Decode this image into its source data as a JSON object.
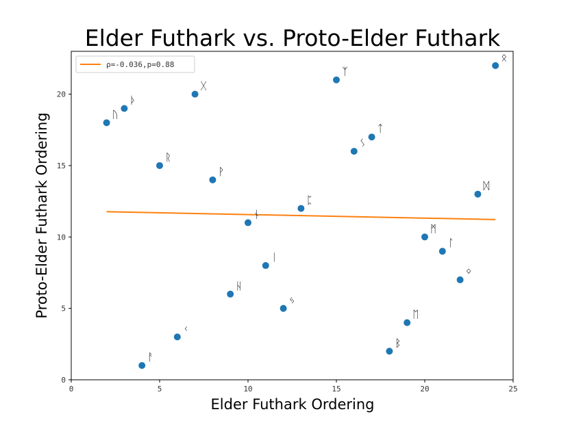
{
  "chart_data": {
    "type": "scatter",
    "title": "Elder Futhark vs. Proto-Elder Futhark",
    "xlabel": "Elder Futhark Ordering",
    "ylabel": "Proto-Elder Futhark Ordering",
    "xlim": [
      0,
      25
    ],
    "ylim": [
      0,
      23
    ],
    "xticks": [
      0,
      5,
      10,
      15,
      20,
      25
    ],
    "yticks": [
      0,
      5,
      10,
      15,
      20
    ],
    "grid": false,
    "legend_position": "top-left",
    "points": [
      {
        "x": 2,
        "y": 18,
        "label": "ᚢ"
      },
      {
        "x": 3,
        "y": 19,
        "label": "ᚦ"
      },
      {
        "x": 4,
        "y": 1,
        "label": "ᚨ"
      },
      {
        "x": 5,
        "y": 15,
        "label": "ᚱ"
      },
      {
        "x": 6,
        "y": 3,
        "label": "ᚲ"
      },
      {
        "x": 7,
        "y": 20,
        "label": "ᚷ"
      },
      {
        "x": 8,
        "y": 14,
        "label": "ᚹ"
      },
      {
        "x": 9,
        "y": 6,
        "label": "ᚺ"
      },
      {
        "x": 10,
        "y": 11,
        "label": "ᚾ"
      },
      {
        "x": 11,
        "y": 8,
        "label": "ᛁ"
      },
      {
        "x": 12,
        "y": 5,
        "label": "ᛃ"
      },
      {
        "x": 13,
        "y": 12,
        "label": "ᛈ"
      },
      {
        "x": 15,
        "y": 21,
        "label": "ᛉ"
      },
      {
        "x": 16,
        "y": 16,
        "label": "ᛊ"
      },
      {
        "x": 17,
        "y": 17,
        "label": "ᛏ"
      },
      {
        "x": 18,
        "y": 2,
        "label": "ᛒ"
      },
      {
        "x": 19,
        "y": 4,
        "label": "ᛖ"
      },
      {
        "x": 20,
        "y": 10,
        "label": "ᛗ"
      },
      {
        "x": 21,
        "y": 9,
        "label": "ᛚ"
      },
      {
        "x": 22,
        "y": 7,
        "label": "ᛜ"
      },
      {
        "x": 23,
        "y": 13,
        "label": "ᛞ"
      },
      {
        "x": 24,
        "y": 22,
        "label": "ᛟ"
      }
    ],
    "point_color": "#1f77b4",
    "fit_line": {
      "name": "ρ=-0.036,p=0.88",
      "color": "#ff7f0e",
      "points": [
        [
          2,
          11.77
        ],
        [
          24,
          11.22
        ]
      ]
    }
  }
}
